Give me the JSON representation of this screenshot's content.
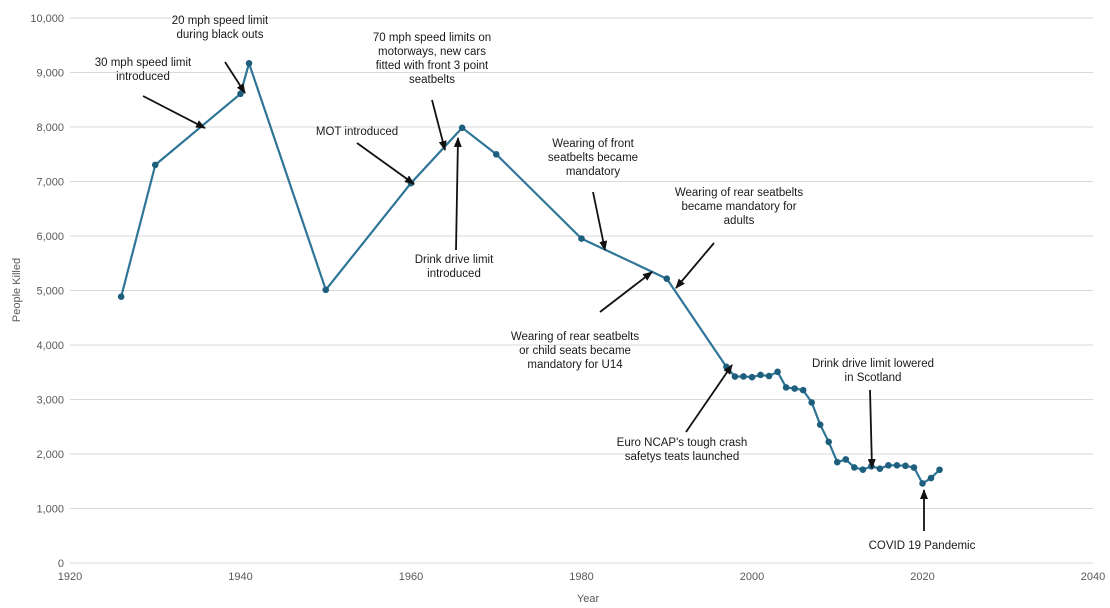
{
  "chart_data": {
    "type": "line",
    "title": "",
    "xlabel": "Year",
    "ylabel": "People Killed",
    "xlim": [
      1920,
      2040
    ],
    "ylim": [
      0,
      10000
    ],
    "grid": "horizontal",
    "x_ticks": [
      "1920",
      "1940",
      "1960",
      "1980",
      "2000",
      "2020",
      "2040"
    ],
    "y_ticks": [
      "0",
      "1,000",
      "2,000",
      "3,000",
      "4,000",
      "5,000",
      "6,000",
      "7,000",
      "8,000",
      "9,000",
      "10,000"
    ],
    "series": [
      {
        "color": "#2f7597",
        "points": [
          [
            1926,
            4886
          ],
          [
            1930,
            7305
          ],
          [
            1940,
            8609
          ],
          [
            1941,
            9169
          ],
          [
            1950,
            5012
          ],
          [
            1960,
            6970
          ],
          [
            1966,
            7985
          ],
          [
            1970,
            7499
          ],
          [
            1980,
            5953
          ],
          [
            1990,
            5217
          ],
          [
            1997,
            3599
          ],
          [
            1998,
            3421
          ],
          [
            1999,
            3423
          ],
          [
            2000,
            3409
          ],
          [
            2001,
            3450
          ],
          [
            2002,
            3431
          ],
          [
            2003,
            3508
          ],
          [
            2004,
            3221
          ],
          [
            2005,
            3201
          ],
          [
            2006,
            3172
          ],
          [
            2007,
            2946
          ],
          [
            2008,
            2538
          ],
          [
            2009,
            2222
          ],
          [
            2010,
            1850
          ],
          [
            2011,
            1901
          ],
          [
            2012,
            1754
          ],
          [
            2013,
            1713
          ],
          [
            2014,
            1775
          ],
          [
            2015,
            1730
          ],
          [
            2016,
            1792
          ],
          [
            2017,
            1793
          ],
          [
            2018,
            1784
          ],
          [
            2019,
            1752
          ],
          [
            2020,
            1460
          ],
          [
            2021,
            1558
          ],
          [
            2022,
            1711
          ]
        ]
      }
    ],
    "annotations": [
      {
        "lines": [
          "30 mph speed limit",
          "introduced"
        ]
      },
      {
        "lines": [
          "20 mph speed limit",
          "during black outs"
        ]
      },
      {
        "lines": [
          "70 mph speed limits on",
          "motorways, new cars",
          "fitted with front 3 point",
          "seatbelts"
        ]
      },
      {
        "lines": [
          "MOT introduced"
        ]
      },
      {
        "lines": [
          "Drink drive limit",
          "introduced"
        ]
      },
      {
        "lines": [
          "Wearing of front",
          "seatbelts became",
          "mandatory"
        ]
      },
      {
        "lines": [
          "Wearing of rear seatbelts",
          "became mandatory for",
          "adults"
        ]
      },
      {
        "lines": [
          "Wearing of rear seatbelts",
          "or child seats became",
          "mandatory for U14"
        ]
      },
      {
        "lines": [
          "Drink drive limit lowered",
          "in Scotland"
        ]
      },
      {
        "lines": [
          "Euro NCAP's tough crash",
          "safetys teats launched"
        ]
      },
      {
        "lines": [
          "COVID 19 Pandemic"
        ]
      }
    ]
  }
}
